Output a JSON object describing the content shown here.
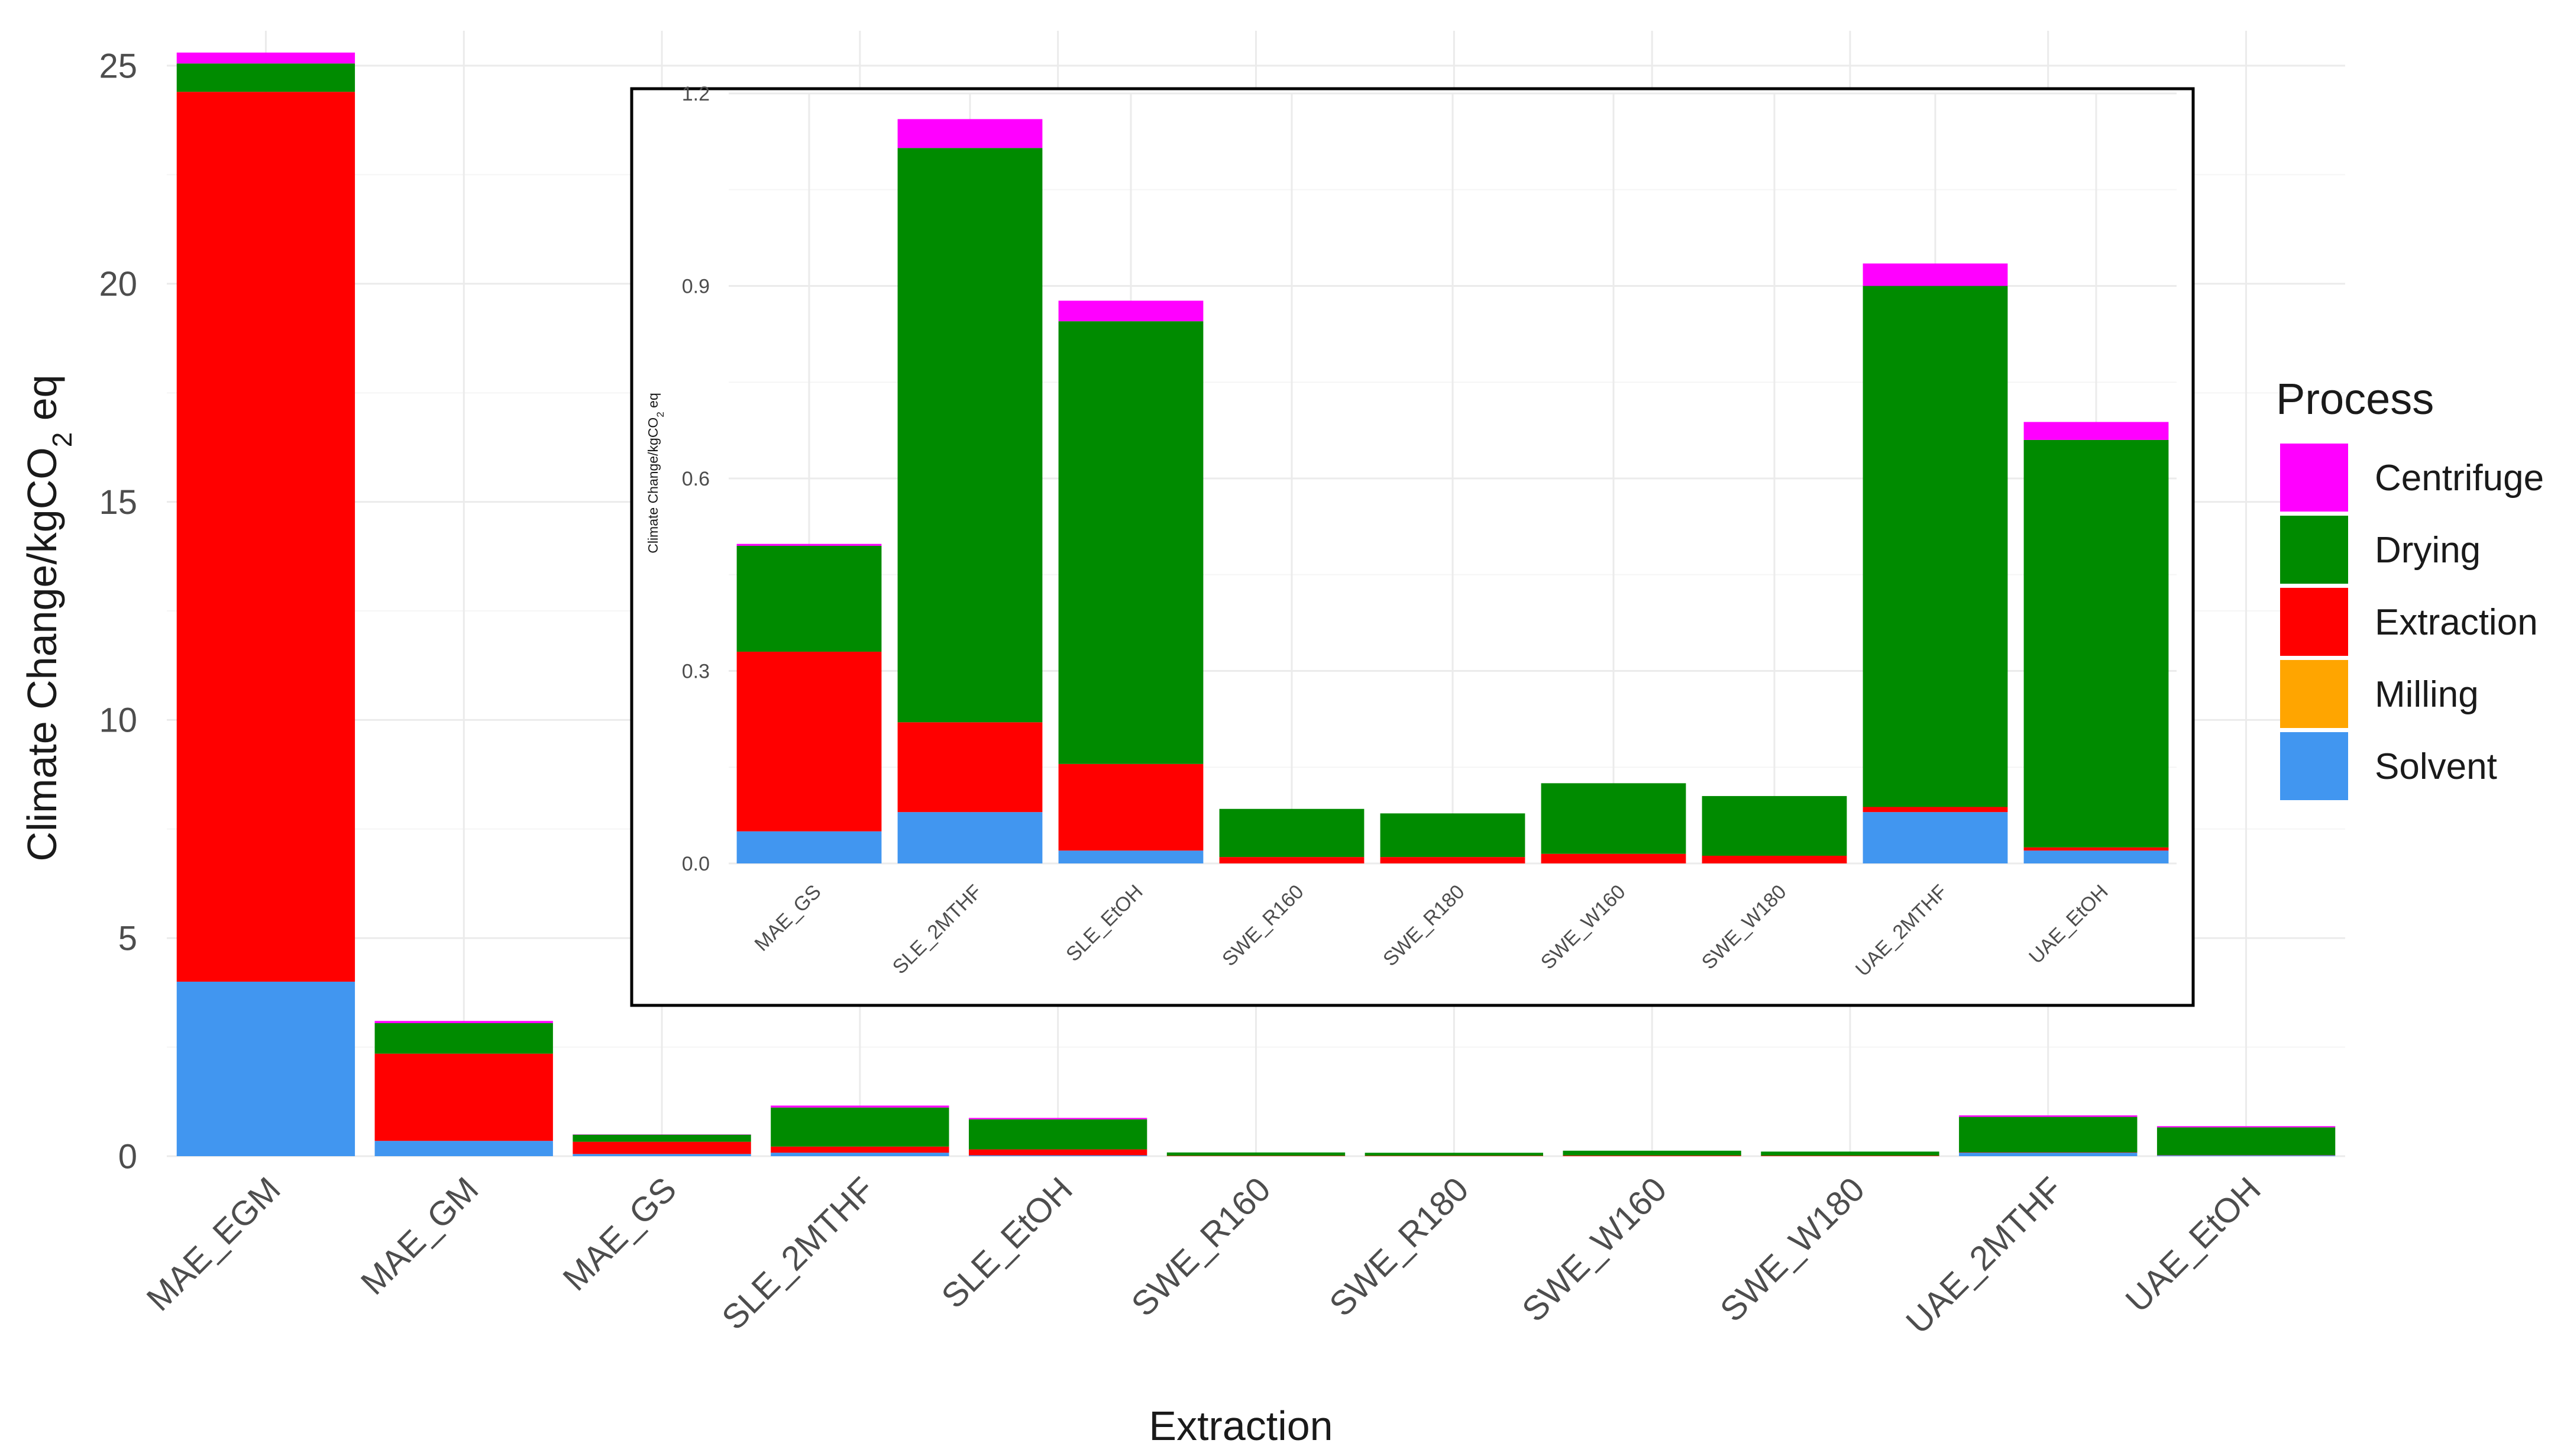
{
  "colors": {
    "Centrifuge": "#ff00ff",
    "Drying": "#008b00",
    "Extraction": "#ff0000",
    "Milling": "#ffa500",
    "Solvent": "#4196f0"
  },
  "chart_data": [
    {
      "id": "main",
      "type": "bar",
      "stacked": true,
      "title": "",
      "xlabel": "Extraction",
      "ylabel_prefix": "Climate Change",
      "ylabel_unit": "kgCO",
      "ylabel_sub": "2",
      "ylabel_suffix": " eq",
      "ylim": [
        0,
        25.8
      ],
      "yticks": [
        0,
        5,
        10,
        15,
        20,
        25
      ],
      "ytick_labels": [
        "0",
        "5",
        "10",
        "15",
        "20",
        "25"
      ],
      "categories": [
        "MAE_EGM",
        "MAE_GM",
        "MAE_GS",
        "SLE_2MTHF",
        "SLE_EtOH",
        "SWE_R160",
        "SWE_R180",
        "SWE_W160",
        "SWE_W180",
        "UAE_2MTHF",
        "UAE_EtOH"
      ],
      "series": [
        {
          "name": "Solvent",
          "values": [
            4.0,
            0.35,
            0.05,
            0.08,
            0.02,
            0.0,
            0.0,
            0.0,
            0.0,
            0.08,
            0.02
          ]
        },
        {
          "name": "Milling",
          "values": [
            0.0,
            0.0,
            0.0,
            0.0,
            0.0,
            0.0,
            0.0,
            0.0,
            0.0,
            0.0,
            0.0
          ]
        },
        {
          "name": "Extraction",
          "values": [
            20.4,
            2.0,
            0.28,
            0.14,
            0.135,
            0.01,
            0.01,
            0.015,
            0.012,
            0.008,
            0.005
          ]
        },
        {
          "name": "Drying",
          "values": [
            0.65,
            0.7,
            0.165,
            0.895,
            0.69,
            0.075,
            0.068,
            0.11,
            0.093,
            0.812,
            0.635
          ]
        },
        {
          "name": "Centrifuge",
          "values": [
            0.25,
            0.05,
            0.003,
            0.045,
            0.032,
            0.0,
            0.0,
            0.0,
            0.0,
            0.035,
            0.028
          ]
        }
      ]
    },
    {
      "id": "inset",
      "type": "bar",
      "stacked": true,
      "title": "",
      "xlabel": "",
      "ylabel_prefix": "Climate Change",
      "ylabel_unit": "kgCO",
      "ylabel_sub": "2",
      "ylabel_suffix": " eq",
      "ylim": [
        0,
        1.2
      ],
      "yticks": [
        0,
        0.3,
        0.6,
        0.9,
        1.2
      ],
      "ytick_labels": [
        "0.0",
        "0.3",
        "0.6",
        "0.9",
        "1.2"
      ],
      "categories": [
        "MAE_GS",
        "SLE_2MTHF",
        "SLE_EtOH",
        "SWE_R160",
        "SWE_R180",
        "SWE_W160",
        "SWE_W180",
        "UAE_2MTHF",
        "UAE_EtOH"
      ],
      "series": [
        {
          "name": "Solvent",
          "values": [
            0.05,
            0.08,
            0.02,
            0.0,
            0.0,
            0.0,
            0.0,
            0.08,
            0.02
          ]
        },
        {
          "name": "Milling",
          "values": [
            0.0,
            0.0,
            0.0,
            0.0,
            0.0,
            0.0,
            0.0,
            0.0,
            0.0
          ]
        },
        {
          "name": "Extraction",
          "values": [
            0.28,
            0.14,
            0.135,
            0.01,
            0.01,
            0.015,
            0.012,
            0.008,
            0.005
          ]
        },
        {
          "name": "Drying",
          "values": [
            0.165,
            0.895,
            0.69,
            0.075,
            0.068,
            0.11,
            0.093,
            0.812,
            0.635
          ]
        },
        {
          "name": "Centrifuge",
          "values": [
            0.003,
            0.045,
            0.032,
            0.0,
            0.0,
            0.0,
            0.0,
            0.035,
            0.028
          ]
        }
      ]
    }
  ],
  "legend": {
    "title": "Process",
    "items": [
      "Centrifuge",
      "Drying",
      "Extraction",
      "Milling",
      "Solvent"
    ]
  }
}
